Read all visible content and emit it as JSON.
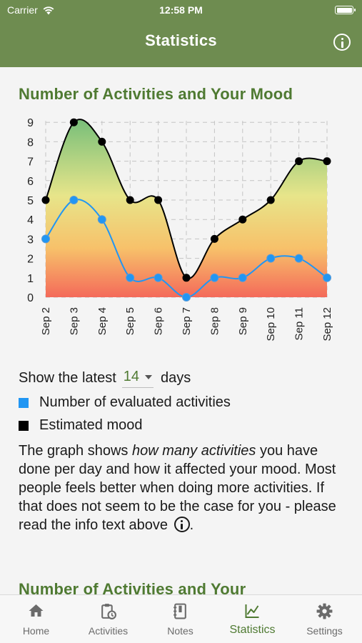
{
  "status_bar": {
    "carrier": "Carrier",
    "time": "12:58 PM"
  },
  "header": {
    "title": "Statistics",
    "info_icon": "info-circle-icon"
  },
  "colors": {
    "header_bg": "#6e8c50",
    "accent": "#4f7a32",
    "activities_series": "#2196f3",
    "mood_series": "#000000"
  },
  "section": {
    "title": "Number of Activities and Your Mood",
    "next_title": "Number of Activities and Your"
  },
  "chart_data": {
    "type": "line",
    "x": [
      "Sep 2",
      "Sep 3",
      "Sep 4",
      "Sep 5",
      "Sep 6",
      "Sep 7",
      "Sep 8",
      "Sep 9",
      "Sep 10",
      "Sep 11",
      "Sep 12"
    ],
    "yticks": [
      "0",
      "1",
      "2",
      "3",
      "4",
      "5",
      "6",
      "7",
      "8",
      "9"
    ],
    "ylim": [
      0,
      9
    ],
    "grid": true,
    "series": [
      {
        "name": "Estimated mood",
        "color": "#000000",
        "values": [
          5,
          9,
          8,
          5,
          5,
          1,
          3,
          4,
          5,
          7,
          7
        ]
      },
      {
        "name": "Number of evaluated activities",
        "color": "#2196f3",
        "values": [
          3,
          5,
          4,
          1,
          1,
          0,
          1,
          1,
          2,
          2,
          1
        ]
      }
    ]
  },
  "controls": {
    "show_prefix": "Show the latest",
    "days_value": "14",
    "show_suffix": "days"
  },
  "legend": {
    "activities": "Number of evaluated activities",
    "mood": "Estimated mood"
  },
  "description": {
    "part1": "The graph shows ",
    "emphasis": "how many activities",
    "part2": " you have done per day and how it affected your mood. Most people feels better when doing more activities. If that does not seem to be the case for you - please read the info text above ",
    "part3": "."
  },
  "tabs": [
    {
      "label": "Home",
      "icon": "home-icon",
      "active": false
    },
    {
      "label": "Activities",
      "icon": "clipboard-clock-icon",
      "active": false
    },
    {
      "label": "Notes",
      "icon": "notebook-icon",
      "active": false
    },
    {
      "label": "Statistics",
      "icon": "line-chart-icon",
      "active": true
    },
    {
      "label": "Settings",
      "icon": "gear-icon",
      "active": false
    }
  ]
}
